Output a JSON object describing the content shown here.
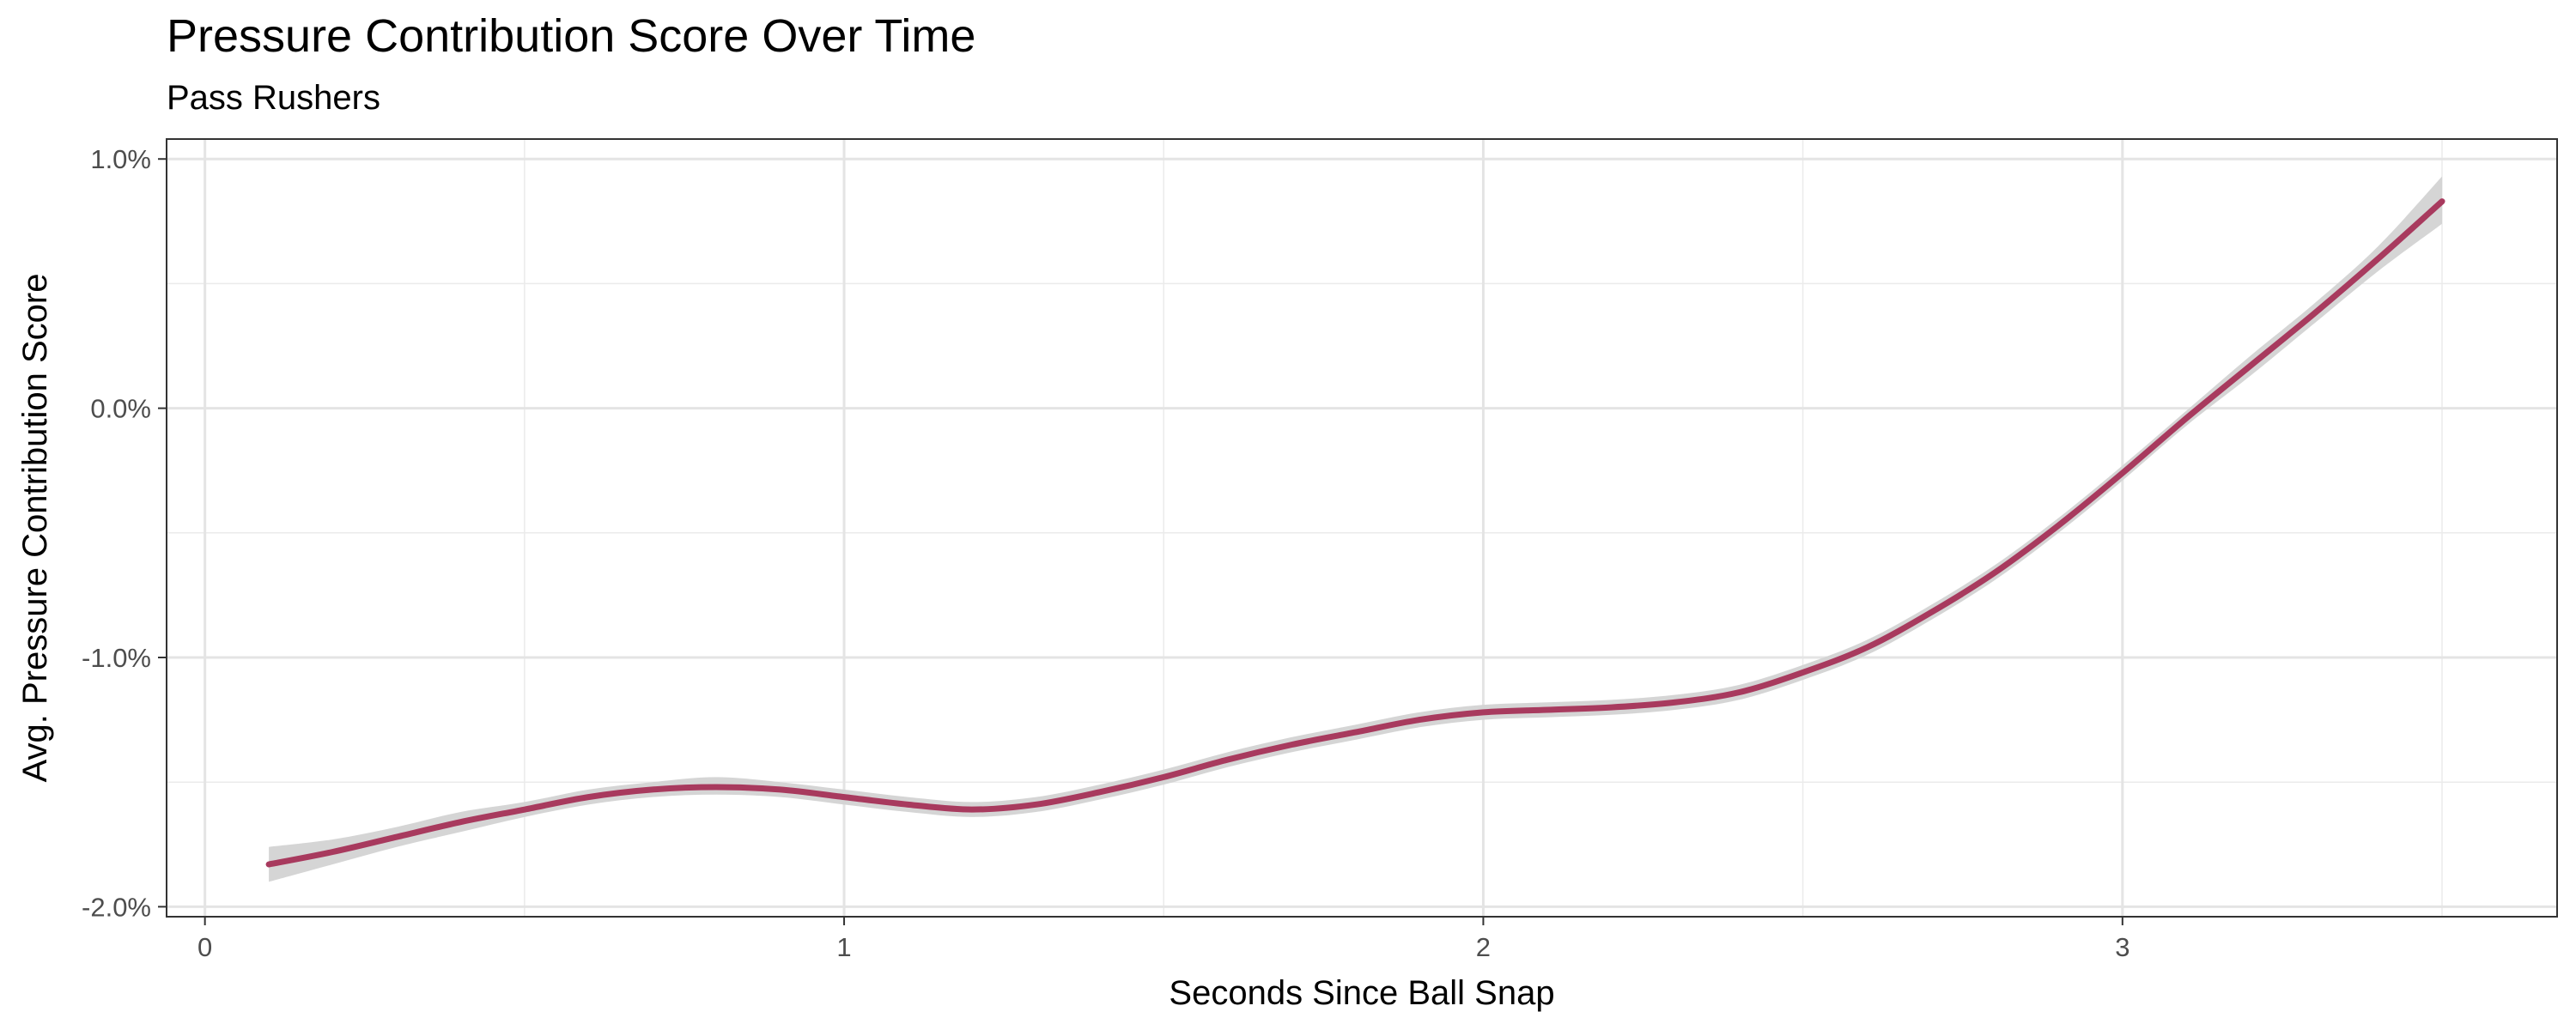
{
  "chart_data": {
    "type": "line",
    "title": "Pressure Contribution Score Over Time",
    "subtitle": "Pass Rushers",
    "xlabel": "Seconds Since Ball Snap",
    "ylabel": "Avg. Pressure Contribution Score",
    "xlim": [
      -0.06,
      3.68
    ],
    "ylim": [
      -2.04,
      1.08
    ],
    "x_ticks": [
      0,
      1,
      2,
      3
    ],
    "x_tick_labels": [
      "0",
      "1",
      "2",
      "3"
    ],
    "y_ticks": [
      1.0,
      0.0,
      -1.0,
      -2.0
    ],
    "y_tick_labels": [
      "1.0%",
      "0.0%",
      "-1.0%",
      "-2.0%"
    ],
    "grid": true,
    "series": [
      {
        "color": "#a83a5e",
        "band_color": "#d3d3d3",
        "points": [
          {
            "x": 0.1,
            "y": -1.83,
            "lo": -1.9,
            "hi": -1.76
          },
          {
            "x": 0.2,
            "y": -1.78,
            "lo": -1.83,
            "hi": -1.73
          },
          {
            "x": 0.3,
            "y": -1.72,
            "lo": -1.76,
            "hi": -1.68
          },
          {
            "x": 0.4,
            "y": -1.66,
            "lo": -1.7,
            "hi": -1.62
          },
          {
            "x": 0.5,
            "y": -1.61,
            "lo": -1.64,
            "hi": -1.58
          },
          {
            "x": 0.6,
            "y": -1.56,
            "lo": -1.59,
            "hi": -1.53
          },
          {
            "x": 0.7,
            "y": -1.53,
            "lo": -1.56,
            "hi": -1.5
          },
          {
            "x": 0.8,
            "y": -1.52,
            "lo": -1.55,
            "hi": -1.48
          },
          {
            "x": 0.9,
            "y": -1.53,
            "lo": -1.56,
            "hi": -1.5
          },
          {
            "x": 1.0,
            "y": -1.56,
            "lo": -1.59,
            "hi": -1.53
          },
          {
            "x": 1.1,
            "y": -1.59,
            "lo": -1.62,
            "hi": -1.56
          },
          {
            "x": 1.2,
            "y": -1.61,
            "lo": -1.64,
            "hi": -1.58
          },
          {
            "x": 1.3,
            "y": -1.59,
            "lo": -1.62,
            "hi": -1.56
          },
          {
            "x": 1.4,
            "y": -1.54,
            "lo": -1.57,
            "hi": -1.51
          },
          {
            "x": 1.5,
            "y": -1.48,
            "lo": -1.51,
            "hi": -1.45
          },
          {
            "x": 1.6,
            "y": -1.41,
            "lo": -1.44,
            "hi": -1.38
          },
          {
            "x": 1.7,
            "y": -1.35,
            "lo": -1.38,
            "hi": -1.32
          },
          {
            "x": 1.8,
            "y": -1.3,
            "lo": -1.33,
            "hi": -1.27
          },
          {
            "x": 1.9,
            "y": -1.25,
            "lo": -1.28,
            "hi": -1.22
          },
          {
            "x": 2.0,
            "y": -1.22,
            "lo": -1.25,
            "hi": -1.19
          },
          {
            "x": 2.1,
            "y": -1.21,
            "lo": -1.24,
            "hi": -1.18
          },
          {
            "x": 2.2,
            "y": -1.2,
            "lo": -1.23,
            "hi": -1.17
          },
          {
            "x": 2.3,
            "y": -1.18,
            "lo": -1.21,
            "hi": -1.15
          },
          {
            "x": 2.4,
            "y": -1.14,
            "lo": -1.17,
            "hi": -1.11
          },
          {
            "x": 2.5,
            "y": -1.06,
            "lo": -1.09,
            "hi": -1.03
          },
          {
            "x": 2.6,
            "y": -0.96,
            "lo": -0.99,
            "hi": -0.93
          },
          {
            "x": 2.7,
            "y": -0.82,
            "lo": -0.85,
            "hi": -0.79
          },
          {
            "x": 2.8,
            "y": -0.66,
            "lo": -0.69,
            "hi": -0.63
          },
          {
            "x": 2.9,
            "y": -0.47,
            "lo": -0.5,
            "hi": -0.44
          },
          {
            "x": 3.0,
            "y": -0.26,
            "lo": -0.29,
            "hi": -0.23
          },
          {
            "x": 3.1,
            "y": -0.04,
            "lo": -0.07,
            "hi": -0.01
          },
          {
            "x": 3.2,
            "y": 0.17,
            "lo": 0.13,
            "hi": 0.21
          },
          {
            "x": 3.3,
            "y": 0.38,
            "lo": 0.34,
            "hi": 0.42
          },
          {
            "x": 3.4,
            "y": 0.6,
            "lo": 0.55,
            "hi": 0.65
          },
          {
            "x": 3.5,
            "y": 0.83,
            "lo": 0.74,
            "hi": 0.93
          }
        ]
      }
    ]
  }
}
